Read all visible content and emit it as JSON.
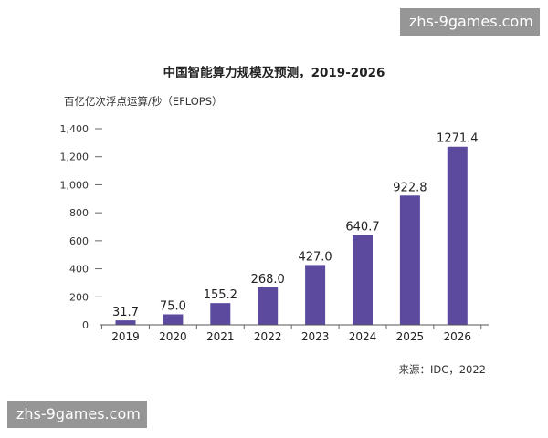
{
  "watermark": "zhs-9games.com",
  "chart_data": {
    "type": "bar",
    "title": "中国智能算力规模及预测，2019-2026",
    "ylabel": "百亿亿次浮点运算/秒（EFLOPS）",
    "xlabel": "",
    "categories": [
      "2019",
      "2020",
      "2021",
      "2022",
      "2023",
      "2024",
      "2025",
      "2026"
    ],
    "values": [
      31.7,
      75.0,
      155.2,
      268.0,
      427.0,
      640.7,
      922.8,
      1271.4
    ],
    "data_labels": [
      "31.7",
      "75.0",
      "155.2",
      "268.0",
      "427.0",
      "640.7",
      "922.8",
      "1271.4"
    ],
    "ylim": [
      0,
      1400
    ],
    "yticks": [
      0,
      200,
      400,
      600,
      800,
      1000,
      1200,
      1400
    ],
    "ytick_labels": [
      "0",
      "200",
      "400",
      "600",
      "800",
      "1,000",
      "1,200",
      "1,400"
    ],
    "bar_color": "#5b4a9e",
    "grid": false,
    "source": "来源：IDC，2022"
  }
}
